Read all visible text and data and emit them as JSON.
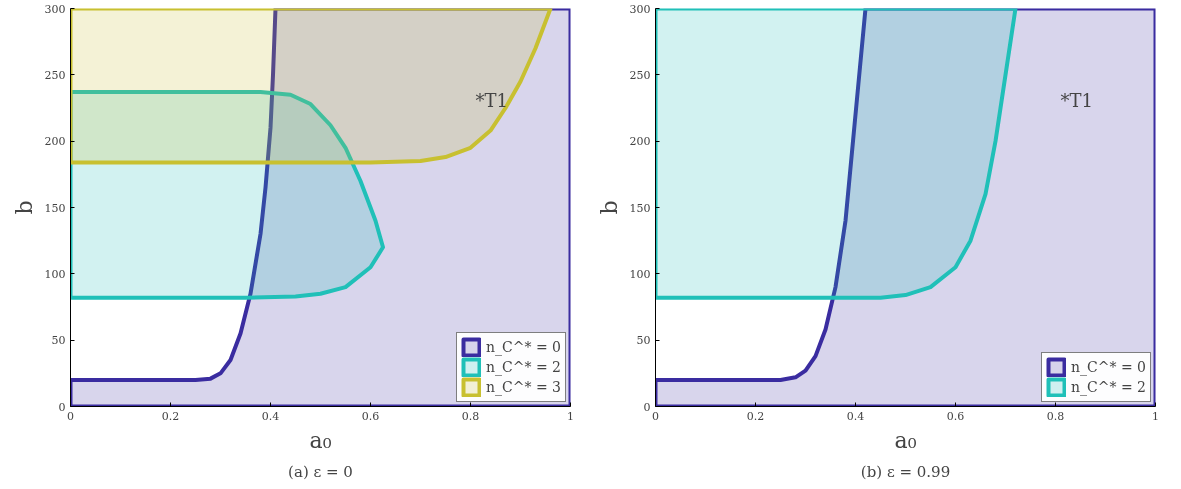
{
  "chart_data": [
    {
      "type": "area",
      "title": "(a) ε = 0",
      "xlabel": "a₀",
      "ylabel": "b",
      "xlim": [
        0,
        1
      ],
      "ylim": [
        0,
        300
      ],
      "xticks": [
        0,
        0.2,
        0.4,
        0.6,
        0.8,
        1
      ],
      "yticks": [
        0,
        50,
        100,
        150,
        200,
        250,
        300
      ],
      "legend": "bottom right",
      "annotations": [
        "*T1"
      ],
      "series": [
        {
          "name": "n_C^* = 0",
          "color": "#3a2ca0",
          "x": [
            0,
            0,
            0.25,
            0.28,
            0.3,
            0.32,
            0.34,
            0.36,
            0.38,
            0.39,
            0.4,
            0.405,
            0.41,
            1,
            1
          ],
          "values": [
            0,
            20,
            20,
            21,
            25,
            35,
            55,
            85,
            130,
            165,
            210,
            250,
            300,
            300,
            0
          ]
        },
        {
          "name": "n_C^* = 2",
          "color": "#20c0b8",
          "x": [
            0,
            0,
            0.38,
            0.44,
            0.48,
            0.52,
            0.55,
            0.58,
            0.61,
            0.625,
            0.6,
            0.55,
            0.5,
            0.45,
            0.35
          ],
          "values": [
            82,
            237,
            237,
            235,
            228,
            212,
            195,
            170,
            140,
            120,
            105,
            90,
            85,
            83,
            82
          ]
        },
        {
          "name": "n_C^* = 3",
          "color": "#c8c030",
          "x": [
            0,
            0,
            0.96,
            0.93,
            0.9,
            0.87,
            0.84,
            0.8,
            0.75,
            0.7,
            0.6
          ],
          "values": [
            184,
            300,
            300,
            270,
            245,
            225,
            208,
            195,
            188,
            185,
            184
          ]
        }
      ]
    },
    {
      "type": "area",
      "title": "(b) ε = 0.99",
      "xlabel": "a₀",
      "ylabel": "b",
      "xlim": [
        0,
        1
      ],
      "ylim": [
        0,
        300
      ],
      "xticks": [
        0,
        0.2,
        0.4,
        0.6,
        0.8,
        1
      ],
      "yticks": [
        0,
        50,
        100,
        150,
        200,
        250,
        300
      ],
      "legend": "bottom right",
      "annotations": [
        "*T1"
      ],
      "series": [
        {
          "name": "n_C^* = 0",
          "color": "#3a2ca0",
          "x": [
            0,
            0,
            0.25,
            0.28,
            0.3,
            0.32,
            0.34,
            0.36,
            0.38,
            0.39,
            0.4,
            0.41,
            0.42,
            1,
            1
          ],
          "values": [
            0,
            20,
            20,
            22,
            27,
            38,
            58,
            90,
            140,
            180,
            220,
            260,
            300,
            300,
            0
          ]
        },
        {
          "name": "n_C^* = 2",
          "color": "#20c0b8",
          "x": [
            0,
            0,
            0.72,
            0.7,
            0.68,
            0.66,
            0.63,
            0.6,
            0.55,
            0.5,
            0.45
          ],
          "values": [
            82,
            300,
            300,
            250,
            200,
            160,
            125,
            105,
            90,
            84,
            82
          ]
        }
      ]
    }
  ]
}
